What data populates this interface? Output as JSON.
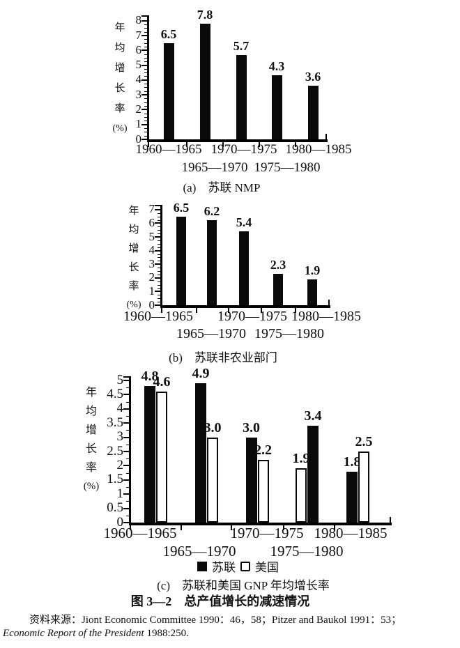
{
  "figure": {
    "title": "图 3—2　总产值增长的减速情况",
    "ylabel": "年均增长率(%)",
    "source": {
      "line1": "资料来源：Jiont Economic Committee 1990：46，58；Pitzer and Baukol 1991：53；",
      "line2_italic": "Economic Report of the President",
      "line2_tail": " 1988:250."
    }
  },
  "chart_data": [
    {
      "id": "a",
      "type": "bar",
      "caption": "(a)　苏联 NMP",
      "ylabel_chars": [
        "年",
        "均",
        "增",
        "长",
        "率",
        "(%)"
      ],
      "ylim": [
        0,
        8
      ],
      "ytick_step": 1,
      "yticks": [
        "8",
        "7",
        "6",
        "5",
        "4",
        "3",
        "2",
        "1",
        "0"
      ],
      "categories": [
        "1960—1965",
        "1965—1970",
        "1970—1975",
        "1975—1980",
        "1980—1985"
      ],
      "series": [
        {
          "name": "苏联",
          "color": "#000000",
          "values": [
            6.5,
            7.8,
            5.7,
            4.3,
            3.6
          ]
        }
      ],
      "grid": false
    },
    {
      "id": "b",
      "type": "bar",
      "caption": "(b)　苏联非农业部门",
      "ylabel_chars": [
        "年",
        "均",
        "增",
        "长",
        "率",
        "(%)"
      ],
      "ylim": [
        0,
        7
      ],
      "ytick_step": 1,
      "yticks": [
        "7",
        "6",
        "5",
        "4",
        "3",
        "2",
        "1",
        "0"
      ],
      "categories": [
        "1960—1965",
        "1965—1970",
        "1970—1975",
        "1975—1980",
        "1980—1985"
      ],
      "series": [
        {
          "name": "苏联",
          "color": "#000000",
          "values": [
            6.5,
            6.2,
            5.4,
            2.3,
            1.9
          ]
        }
      ],
      "grid": false
    },
    {
      "id": "c",
      "type": "bar",
      "caption": "(c)　苏联和美国 GNP 年均增长率",
      "ylabel_chars": [
        "年",
        "均",
        "增",
        "长",
        "率",
        "(%)"
      ],
      "ylim": [
        0,
        5
      ],
      "ytick_step": 0.5,
      "yticks": [
        "5",
        "4.5",
        "4",
        "3.5",
        "3",
        "2.5",
        "2",
        "1.5",
        "1",
        "0.5",
        "0"
      ],
      "categories": [
        "1960—1965",
        "1965—1970",
        "1970—1975",
        "1975—1980",
        "1980—1985"
      ],
      "series": [
        {
          "name": "苏联",
          "color": "#000000",
          "values": [
            4.8,
            4.9,
            3.0,
            3.4,
            1.8
          ]
        },
        {
          "name": "美国",
          "color": "#ffffff",
          "values": [
            4.6,
            3.0,
            2.2,
            1.9,
            2.5
          ]
        }
      ],
      "bar_order": [
        [
          0,
          1
        ],
        [
          0,
          1
        ],
        [
          0,
          1
        ],
        [
          1,
          0
        ],
        [
          0,
          1
        ]
      ],
      "legend_position": "bottom",
      "grid": false
    }
  ]
}
